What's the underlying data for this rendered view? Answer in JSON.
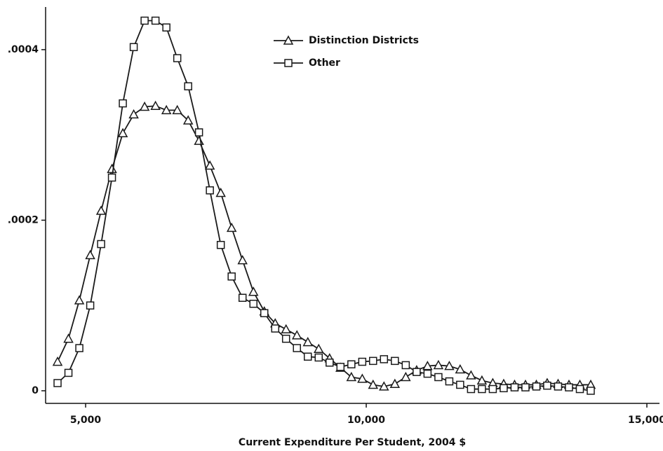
{
  "chart_data": {
    "type": "line",
    "xlabel": "Current Expenditure Per Student, 2004 $",
    "x": [
      4500,
      4694,
      4888,
      5082,
      5276,
      5469,
      5663,
      5857,
      6051,
      6245,
      6439,
      6633,
      6827,
      7020,
      7214,
      7408,
      7602,
      7796,
      7990,
      8184,
      8378,
      8571,
      8765,
      8959,
      9153,
      9347,
      9541,
      9735,
      9929,
      10122,
      10316,
      10510,
      10704,
      10898,
      11092,
      11286,
      11480,
      11673,
      11867,
      12061,
      12255,
      12449,
      12643,
      12837,
      13031,
      13224,
      13418,
      13612,
      13806,
      14000
    ],
    "series": [
      {
        "name": "Distinction Districts",
        "color": "#1a1a1a",
        "marker": "triangle",
        "values": [
          3.4e-05,
          6.1e-05,
          0.000106,
          0.000159,
          0.000211,
          0.00026,
          0.000302,
          0.000324,
          0.000333,
          0.000334,
          0.000329,
          0.000329,
          0.000317,
          0.000293,
          0.000264,
          0.000232,
          0.000191,
          0.000153,
          0.000116,
          9.3e-05,
          7.9e-05,
          7.2e-05,
          6.5e-05,
          5.7e-05,
          4.9e-05,
          3.8e-05,
          2.7e-05,
          1.6e-05,
          1.4e-05,
          7e-06,
          5e-06,
          8e-06,
          1.6e-05,
          2.4e-05,
          2.9e-05,
          3e-05,
          2.9e-05,
          2.5e-05,
          1.8e-05,
          1.2e-05,
          9e-06,
          8e-06,
          7e-06,
          7e-06,
          7e-06,
          9e-06,
          8e-06,
          7e-06,
          7e-06,
          7e-06
        ]
      },
      {
        "name": "Other",
        "color": "#1a1a1a",
        "marker": "square",
        "values": [
          9e-06,
          2.1e-05,
          5e-05,
          0.0001,
          0.000172,
          0.00025,
          0.000337,
          0.000403,
          0.000434,
          0.000434,
          0.000426,
          0.00039,
          0.000357,
          0.000303,
          0.000235,
          0.000171,
          0.000134,
          0.000109,
          0.000102,
          9.1e-05,
          7.3e-05,
          6.1e-05,
          5e-05,
          4e-05,
          3.9e-05,
          3.3e-05,
          2.8e-05,
          3.1e-05,
          3.4e-05,
          3.5e-05,
          3.7e-05,
          3.5e-05,
          3e-05,
          2.2e-05,
          2e-05,
          1.6e-05,
          1.1e-05,
          7e-06,
          2e-06,
          2e-06,
          2e-06,
          3e-06,
          4e-06,
          4e-06,
          5e-06,
          6e-06,
          5e-06,
          4e-06,
          2e-06,
          0
        ]
      }
    ],
    "xlim": [
      4287,
      15225
    ],
    "ylim": [
      -1.48e-05,
      0.00045
    ],
    "xticks": [
      {
        "value": 5000,
        "label": "5,000"
      },
      {
        "value": 10000,
        "label": "10,000"
      },
      {
        "value": 15000,
        "label": "15,000"
      }
    ],
    "yticks": [
      0,
      {
        "value": 0.0002,
        "label": ".0002"
      },
      {
        "value": 0.0004,
        "label": ".0004"
      }
    ],
    "grid": false
  }
}
